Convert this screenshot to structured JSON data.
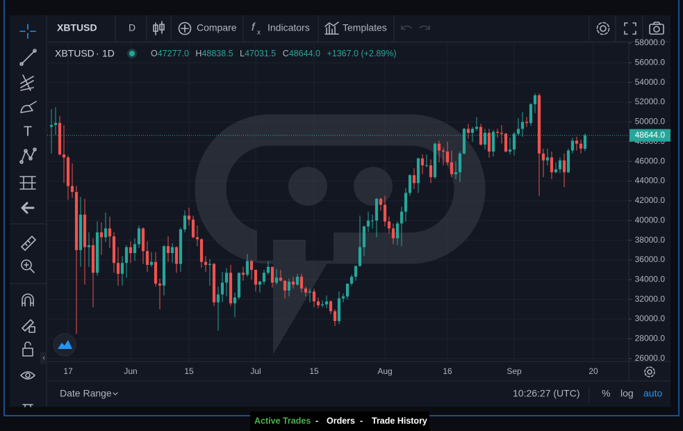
{
  "toolbar": {
    "symbol": "XBTUSD",
    "interval": "D",
    "compare": "Compare",
    "indicators": "Indicators",
    "templates": "Templates"
  },
  "legend": {
    "symbol": "XBTUSD",
    "interval": "1D",
    "open": {
      "key": "O",
      "value": "47277.0"
    },
    "high": {
      "key": "H",
      "value": "48838.5"
    },
    "low": {
      "key": "L",
      "value": "47031.5"
    },
    "close": {
      "key": "C",
      "value": "48644.0"
    },
    "change": "+1367.0 (+2.89%)"
  },
  "chart": {
    "type": "candlestick",
    "up_color": "#26a69a",
    "down_color": "#ef5350",
    "grid": true,
    "ylim": [
      25700,
      58000
    ],
    "xlim": [
      -1,
      138.5
    ],
    "yticks": [
      {
        "value": 26000,
        "label": "26000.0"
      },
      {
        "value": 28000,
        "label": "28000.0"
      },
      {
        "value": 30000,
        "label": "30000.0"
      },
      {
        "value": 32000,
        "label": "32000.0"
      },
      {
        "value": 34000,
        "label": "34000.0"
      },
      {
        "value": 36000,
        "label": "36000.0"
      },
      {
        "value": 38000,
        "label": "38000.0"
      },
      {
        "value": 40000,
        "label": "40000.0"
      },
      {
        "value": 42000,
        "label": "42000.0"
      },
      {
        "value": 44000,
        "label": "44000.0"
      },
      {
        "value": 46000,
        "label": "46000.0"
      },
      {
        "value": 48000,
        "label": "48000.0"
      },
      {
        "value": 50000,
        "label": "50000.0"
      },
      {
        "value": 52000,
        "label": "52000.0"
      },
      {
        "value": 54000,
        "label": "54000.0"
      },
      {
        "value": 56000,
        "label": "56000.0"
      },
      {
        "value": 58000,
        "label": "58000.0"
      }
    ],
    "xticks": [
      {
        "value": 4,
        "label": "17"
      },
      {
        "value": 19,
        "label": "Jun"
      },
      {
        "value": 33,
        "label": "15"
      },
      {
        "value": 49,
        "label": "Jul"
      },
      {
        "value": 63,
        "label": "15"
      },
      {
        "value": 80,
        "label": "Aug"
      },
      {
        "value": 95,
        "label": "16"
      },
      {
        "value": 111,
        "label": "Sep"
      },
      {
        "value": 130,
        "label": "20"
      }
    ],
    "last_price": {
      "value": 48644,
      "label": "48644.0"
    },
    "candles": [
      [
        49500,
        51300,
        46800,
        49700
      ],
      [
        49700,
        51500,
        48700,
        49900
      ],
      [
        49900,
        50600,
        46600,
        46700
      ],
      [
        46700,
        49700,
        43800,
        46400
      ],
      [
        46400,
        46600,
        42100,
        43500
      ],
      [
        43500,
        45800,
        42300,
        42900
      ],
      [
        42900,
        43500,
        28500,
        37000
      ],
      [
        37000,
        42400,
        35300,
        40600
      ],
      [
        40600,
        42200,
        33500,
        37300
      ],
      [
        37300,
        38800,
        35300,
        37500
      ],
      [
        37500,
        38200,
        31200,
        34700
      ],
      [
        34700,
        39900,
        34400,
        38800
      ],
      [
        38800,
        39800,
        36500,
        38300
      ],
      [
        38300,
        40800,
        37800,
        39200
      ],
      [
        39200,
        40400,
        37200,
        38400
      ],
      [
        38400,
        38800,
        34700,
        35700
      ],
      [
        35700,
        37300,
        33400,
        34600
      ],
      [
        34600,
        36400,
        33400,
        35700
      ],
      [
        35700,
        37500,
        34200,
        37300
      ],
      [
        37300,
        37900,
        35700,
        36700
      ],
      [
        36700,
        38200,
        35900,
        37600
      ],
      [
        37600,
        39500,
        37200,
        39200
      ],
      [
        39200,
        39300,
        35600,
        36900
      ],
      [
        36900,
        37900,
        34800,
        35500
      ],
      [
        35500,
        36800,
        35300,
        35800
      ],
      [
        35800,
        36800,
        33300,
        33600
      ],
      [
        33600,
        34100,
        31000,
        33400
      ],
      [
        33400,
        37500,
        32400,
        37400
      ],
      [
        37400,
        38400,
        35800,
        36700
      ],
      [
        36700,
        37700,
        35700,
        37300
      ],
      [
        37300,
        37400,
        34700,
        35600
      ],
      [
        35600,
        39300,
        34800,
        39100
      ],
      [
        39100,
        41000,
        38800,
        40500
      ],
      [
        40500,
        41300,
        39500,
        40100
      ],
      [
        40100,
        40500,
        38200,
        38300
      ],
      [
        38300,
        39500,
        37400,
        38100
      ],
      [
        38100,
        38200,
        35200,
        35800
      ],
      [
        35800,
        36400,
        34800,
        35500
      ],
      [
        35500,
        36100,
        33400,
        35600
      ],
      [
        35600,
        35700,
        31300,
        31700
      ],
      [
        31700,
        33300,
        28800,
        32500
      ],
      [
        32500,
        34800,
        31700,
        33700
      ],
      [
        33700,
        35200,
        32300,
        34700
      ],
      [
        34700,
        35500,
        31300,
        31600
      ],
      [
        31600,
        32700,
        30200,
        32200
      ],
      [
        32200,
        34700,
        32000,
        34700
      ],
      [
        34700,
        35300,
        33900,
        34500
      ],
      [
        34500,
        36600,
        34300,
        35900
      ],
      [
        35900,
        36000,
        34000,
        35000
      ],
      [
        35000,
        35000,
        32800,
        33500
      ],
      [
        33500,
        33900,
        32700,
        33800
      ],
      [
        33800,
        35000,
        33500,
        34700
      ],
      [
        34700,
        35900,
        34500,
        35300
      ],
      [
        35300,
        35300,
        33200,
        33700
      ],
      [
        33700,
        35100,
        33500,
        34200
      ],
      [
        34200,
        35000,
        33800,
        33900
      ],
      [
        33900,
        33900,
        32100,
        32900
      ],
      [
        32900,
        34100,
        32300,
        33800
      ],
      [
        33800,
        34300,
        33100,
        33500
      ],
      [
        33500,
        34600,
        33400,
        34300
      ],
      [
        34300,
        34600,
        32700,
        33100
      ],
      [
        33100,
        33300,
        32300,
        32700
      ],
      [
        32700,
        33100,
        31700,
        32800
      ],
      [
        32800,
        33100,
        31200,
        31800
      ],
      [
        31800,
        32200,
        31100,
        31400
      ],
      [
        31400,
        31900,
        31200,
        31500
      ],
      [
        31500,
        32400,
        31100,
        31800
      ],
      [
        31800,
        31900,
        30500,
        30800
      ],
      [
        30800,
        31000,
        29300,
        29800
      ],
      [
        29800,
        32800,
        29500,
        32100
      ],
      [
        32100,
        32600,
        31700,
        32300
      ],
      [
        32300,
        33600,
        32000,
        33600
      ],
      [
        33600,
        34500,
        33400,
        34300
      ],
      [
        34300,
        35400,
        33900,
        35400
      ],
      [
        35400,
        40500,
        35300,
        37300
      ],
      [
        37300,
        39500,
        36400,
        39400
      ],
      [
        39400,
        40900,
        38800,
        40000
      ],
      [
        40000,
        40600,
        39200,
        40000
      ],
      [
        40000,
        42300,
        38300,
        42200
      ],
      [
        42200,
        42300,
        41000,
        41600
      ],
      [
        41600,
        42500,
        39400,
        39900
      ],
      [
        39900,
        40400,
        38700,
        39200
      ],
      [
        39200,
        39700,
        37600,
        38200
      ],
      [
        38200,
        39900,
        37500,
        39700
      ],
      [
        39700,
        41400,
        37400,
        40900
      ],
      [
        40900,
        43300,
        39900,
        42800
      ],
      [
        42800,
        44700,
        42500,
        44600
      ],
      [
        44600,
        45300,
        43200,
        43800
      ],
      [
        43800,
        46400,
        42800,
        46300
      ],
      [
        46300,
        46700,
        44700,
        45600
      ],
      [
        45600,
        46700,
        45400,
        45600
      ],
      [
        45600,
        46200,
        43800,
        44400
      ],
      [
        44400,
        47900,
        44200,
        47800
      ],
      [
        47800,
        48100,
        45900,
        47100
      ],
      [
        47100,
        47400,
        45600,
        47000
      ],
      [
        47000,
        48000,
        45600,
        45900
      ],
      [
        45900,
        47100,
        44400,
        44700
      ],
      [
        44700,
        46000,
        44200,
        44900
      ],
      [
        44900,
        47000,
        43900,
        46800
      ],
      [
        46800,
        49400,
        46700,
        49300
      ],
      [
        49300,
        49800,
        48300,
        48900
      ],
      [
        48900,
        49500,
        48000,
        49300
      ],
      [
        49300,
        50500,
        49100,
        49500
      ],
      [
        49500,
        49800,
        47600,
        47700
      ],
      [
        47700,
        49300,
        47200,
        48900
      ],
      [
        48900,
        49300,
        46400,
        47000
      ],
      [
        47000,
        49200,
        46500,
        49000
      ],
      [
        49000,
        49300,
        48400,
        48900
      ],
      [
        48900,
        49700,
        47800,
        48800
      ],
      [
        48800,
        48900,
        46900,
        47000
      ],
      [
        47000,
        48400,
        46700,
        47200
      ],
      [
        47200,
        49000,
        46600,
        48800
      ],
      [
        48800,
        50400,
        48600,
        49300
      ],
      [
        49300,
        51000,
        48500,
        50000
      ],
      [
        50000,
        50500,
        49500,
        49900
      ],
      [
        49900,
        51900,
        49600,
        51800
      ],
      [
        51800,
        52900,
        50900,
        52700
      ],
      [
        52700,
        52900,
        42500,
        46800
      ],
      [
        46800,
        47300,
        44400,
        46100
      ],
      [
        46100,
        47300,
        45600,
        46400
      ],
      [
        46400,
        47000,
        44200,
        44900
      ],
      [
        44900,
        45900,
        44800,
        45200
      ],
      [
        45200,
        46400,
        44800,
        46100
      ],
      [
        46100,
        46800,
        43400,
        44900
      ],
      [
        44900,
        47300,
        44800,
        47100
      ],
      [
        47100,
        48400,
        46800,
        48100
      ],
      [
        48100,
        48500,
        47100,
        47800
      ],
      [
        47800,
        48200,
        46800,
        47300
      ],
      [
        47277,
        48838.5,
        47031.5,
        48644
      ]
    ]
  },
  "bottom_bar": {
    "date_range": "Date Range",
    "time": "10:26:27 (UTC)",
    "percent": "%",
    "log": "log",
    "auto": "auto"
  },
  "footer": {
    "links": [
      "Active Trades",
      "Orders",
      "Trade History"
    ],
    "separator": "-"
  }
}
